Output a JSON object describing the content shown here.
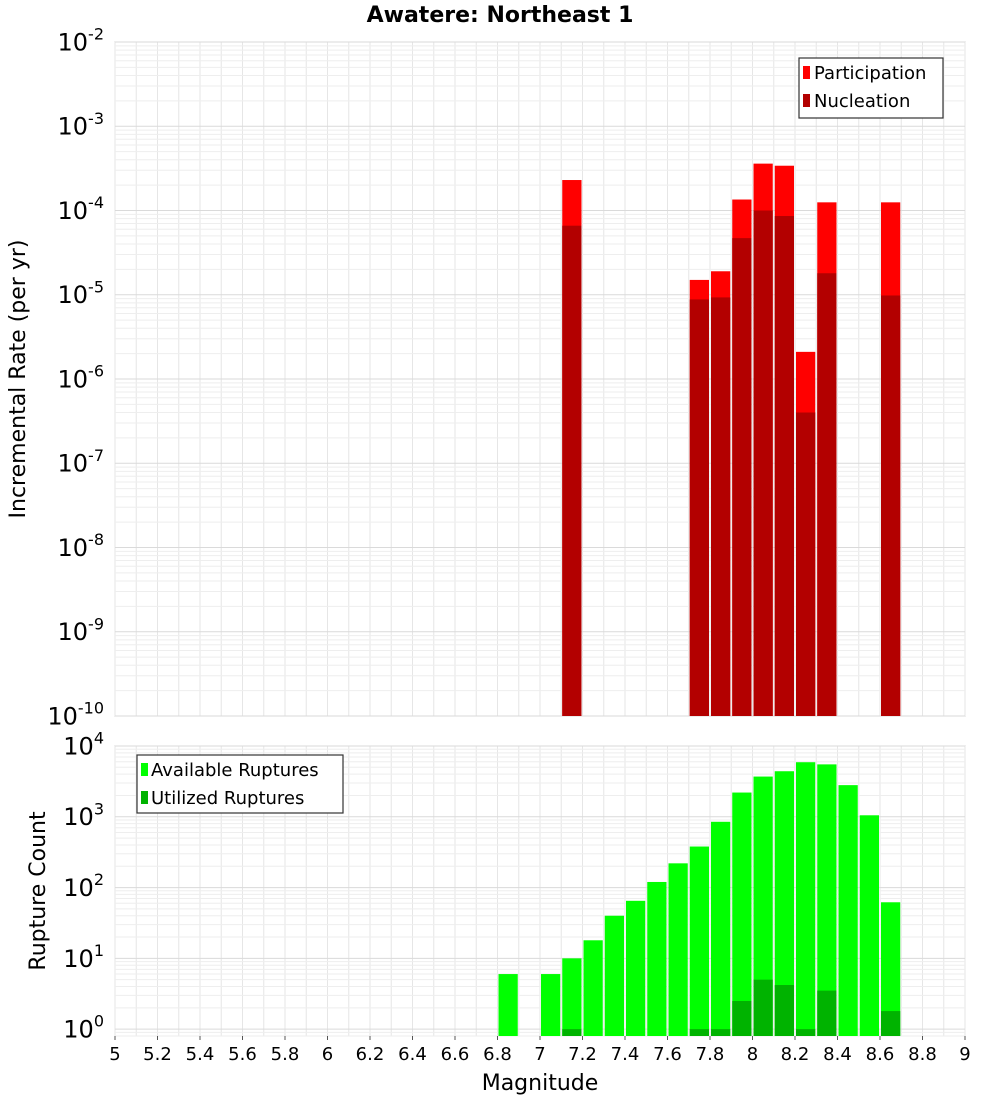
{
  "chart_data": [
    {
      "type": "bar",
      "title": "Awatere: Northeast 1",
      "xlabel": "",
      "ylabel": "Incremental Rate (per yr)",
      "yscale": "log",
      "xlim": [
        5,
        9
      ],
      "ylim": [
        1e-10,
        0.01
      ],
      "y_tick_labels": [
        {
          "base": "10",
          "exp": "-10",
          "value": 1e-10
        },
        {
          "base": "10",
          "exp": "-9",
          "value": 1e-09
        },
        {
          "base": "10",
          "exp": "-8",
          "value": 1e-08
        },
        {
          "base": "10",
          "exp": "-7",
          "value": 1e-07
        },
        {
          "base": "10",
          "exp": "-6",
          "value": 1e-06
        },
        {
          "base": "10",
          "exp": "-5",
          "value": 1e-05
        },
        {
          "base": "10",
          "exp": "-4",
          "value": 0.0001
        },
        {
          "base": "10",
          "exp": "-3",
          "value": 0.001
        },
        {
          "base": "10",
          "exp": "-2",
          "value": 0.01
        }
      ],
      "legend": {
        "placement": "top-right",
        "entries": [
          "Participation",
          "Nucleation"
        ]
      },
      "grid": true,
      "series": [
        {
          "name": "Participation",
          "color": "#ff0000",
          "x": [
            7.15,
            7.75,
            7.85,
            7.95,
            8.05,
            8.15,
            8.25,
            8.35,
            8.65
          ],
          "values": [
            0.00023,
            1.5e-05,
            1.9e-05,
            0.000135,
            0.00036,
            0.00034,
            2.1e-06,
            0.000125,
            0.000125
          ]
        },
        {
          "name": "Nucleation",
          "color": "#b30000",
          "x": [
            7.15,
            7.75,
            7.85,
            7.95,
            8.05,
            8.15,
            8.25,
            8.35,
            8.65
          ],
          "values": [
            6.6e-05,
            8.8e-06,
            9.3e-06,
            4.7e-05,
            0.0001,
            8.6e-05,
            4e-07,
            1.8e-05,
            9.8e-06
          ]
        }
      ]
    },
    {
      "type": "bar",
      "title": "",
      "xlabel": "Magnitude",
      "ylabel": "Rupture Count",
      "yscale": "log",
      "xlim": [
        5,
        9
      ],
      "ylim": [
        0.8,
        10000
      ],
      "x_tick_labels": [
        "5",
        "5.2",
        "5.4",
        "5.6",
        "5.8",
        "6",
        "6.2",
        "6.4",
        "6.6",
        "6.8",
        "7",
        "7.2",
        "7.4",
        "7.6",
        "7.8",
        "8",
        "8.2",
        "8.4",
        "8.6",
        "8.8",
        "9"
      ],
      "y_tick_labels": [
        {
          "base": "10",
          "exp": "0",
          "value": 1
        },
        {
          "base": "10",
          "exp": "1",
          "value": 10
        },
        {
          "base": "10",
          "exp": "2",
          "value": 100
        },
        {
          "base": "10",
          "exp": "3",
          "value": 1000
        },
        {
          "base": "10",
          "exp": "4",
          "value": 10000
        }
      ],
      "legend": {
        "placement": "top-left",
        "entries": [
          "Available Ruptures",
          "Utilized Ruptures"
        ]
      },
      "grid": true,
      "series": [
        {
          "name": "Available Ruptures",
          "color": "#00ff00",
          "x": [
            6.85,
            7.05,
            7.15,
            7.25,
            7.35,
            7.45,
            7.55,
            7.65,
            7.75,
            7.85,
            7.95,
            8.05,
            8.15,
            8.25,
            8.35,
            8.45,
            8.55,
            8.65
          ],
          "values": [
            6,
            6,
            10,
            18,
            40,
            65,
            120,
            220,
            380,
            850,
            2200,
            3700,
            4400,
            5900,
            5500,
            2800,
            1050,
            62
          ]
        },
        {
          "name": "Utilized Ruptures",
          "color": "#00b300",
          "x": [
            7.15,
            7.75,
            7.85,
            7.95,
            8.05,
            8.15,
            8.25,
            8.35,
            8.65
          ],
          "values": [
            1,
            1,
            1,
            2.5,
            5,
            4.2,
            1,
            3.5,
            1.8
          ]
        }
      ]
    }
  ]
}
